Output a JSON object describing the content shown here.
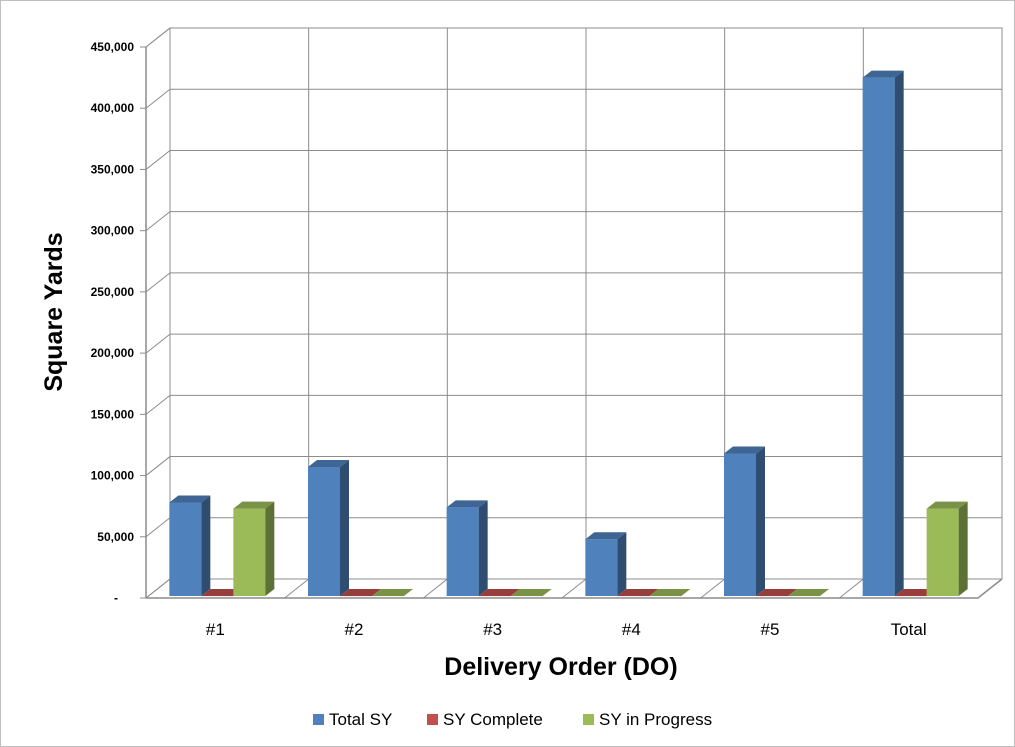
{
  "chart_data": {
    "type": "bar",
    "categories": [
      "#1",
      "#2",
      "#3",
      "#4",
      "#5",
      "Total"
    ],
    "series": [
      {
        "name": "Total SY",
        "values": [
          78000,
          107000,
          74000,
          48000,
          118000,
          425000
        ],
        "color": "#4f81bd"
      },
      {
        "name": "SY Complete",
        "values": [
          0,
          0,
          0,
          0,
          0,
          0
        ],
        "color": "#c0504d"
      },
      {
        "name": "SY in Progress",
        "values": [
          73000,
          0,
          0,
          0,
          0,
          73000
        ],
        "color": "#9bbb59"
      }
    ],
    "yticks": [
      "-",
      "50,000",
      "100,000",
      "150,000",
      "200,000",
      "250,000",
      "300,000",
      "350,000",
      "400,000",
      "450,000"
    ],
    "ylim": [
      0,
      450000
    ],
    "xlabel": "Delivery Order (DO)",
    "ylabel": "Square Yards",
    "grid": true,
    "legend_position": "bottom"
  }
}
